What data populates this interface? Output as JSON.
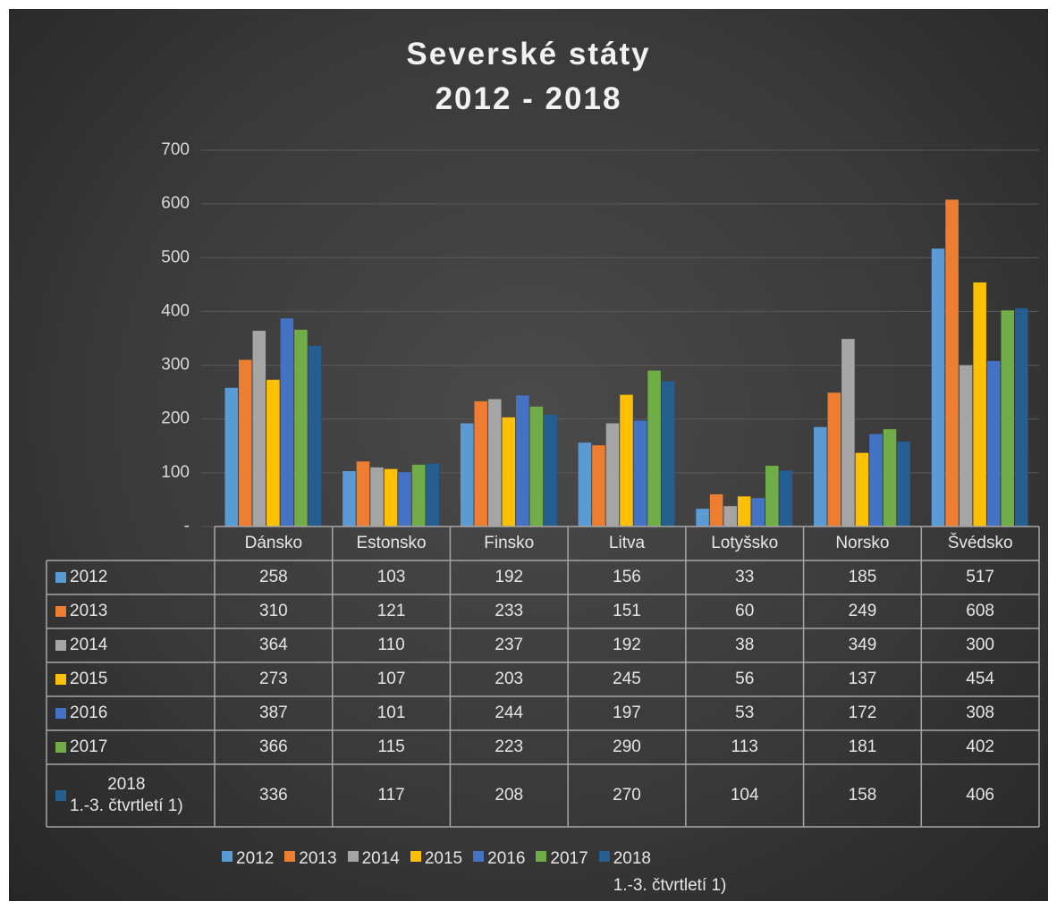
{
  "chart_data": {
    "type": "bar",
    "title": "Severské státy\n2012 - 2018",
    "categories": [
      "Dánsko",
      "Estonsko",
      "Finsko",
      "Litva",
      "Lotyšsko",
      "Norsko",
      "Švédsko"
    ],
    "series": [
      {
        "name": "2012",
        "color": "#5b9bd5",
        "values": [
          258,
          103,
          192,
          156,
          33,
          185,
          517
        ]
      },
      {
        "name": "2013",
        "color": "#ed7d31",
        "values": [
          310,
          121,
          233,
          151,
          60,
          249,
          608
        ]
      },
      {
        "name": "2014",
        "color": "#a5a5a5",
        "values": [
          364,
          110,
          237,
          192,
          38,
          349,
          300
        ]
      },
      {
        "name": "2015",
        "color": "#ffc000",
        "values": [
          273,
          107,
          203,
          245,
          56,
          137,
          454
        ]
      },
      {
        "name": "2016",
        "color": "#4472c4",
        "values": [
          387,
          101,
          244,
          197,
          53,
          172,
          308
        ]
      },
      {
        "name": "2017",
        "color": "#70ad47",
        "values": [
          366,
          115,
          223,
          290,
          113,
          181,
          402
        ]
      },
      {
        "name": "2018\n1.-3. čtvrtletí 1)",
        "color": "#255e91",
        "values": [
          336,
          117,
          208,
          270,
          104,
          158,
          406
        ]
      }
    ],
    "ylim": [
      0,
      700
    ],
    "yticks": [
      {
        "value": 0,
        "label": "-"
      },
      100,
      200,
      300,
      400,
      500,
      600,
      700
    ],
    "grid": true,
    "legend": "bottom"
  }
}
